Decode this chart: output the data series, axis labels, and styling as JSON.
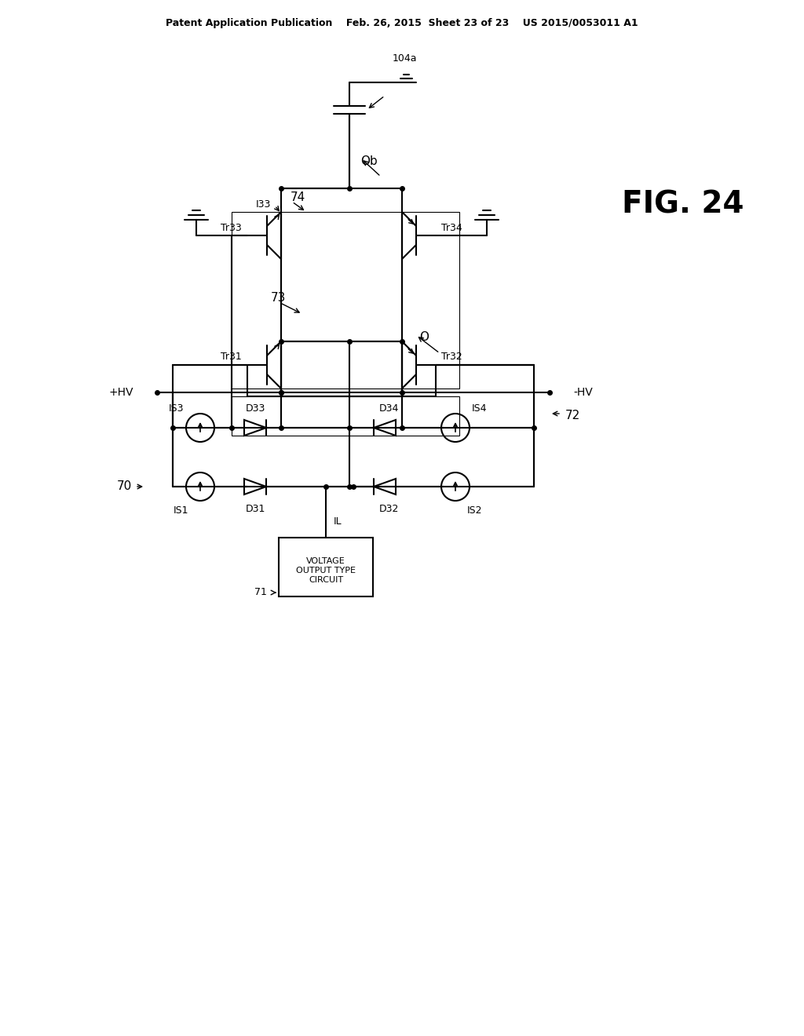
{
  "bg_color": "#ffffff",
  "line_color": "#000000",
  "header_text": "Patent Application Publication    Feb. 26, 2015  Sheet 23 of 23    US 2015/0053011 A1",
  "fig_label": "FIG. 24",
  "title": "FIG. 24",
  "lw": 1.5,
  "component_lw": 1.5
}
